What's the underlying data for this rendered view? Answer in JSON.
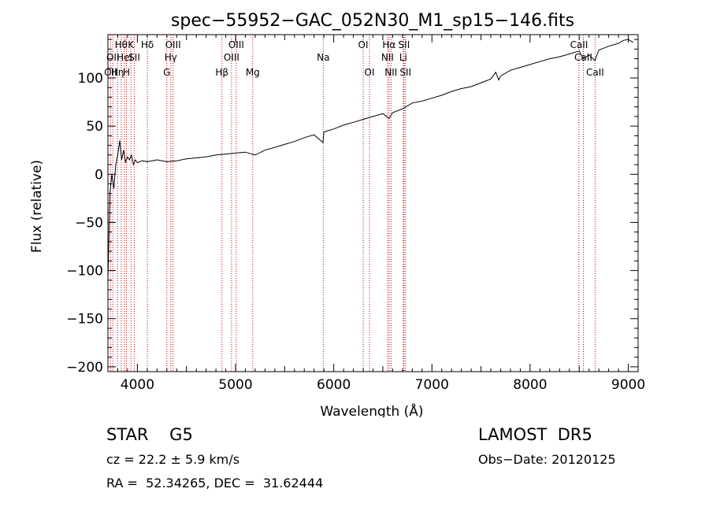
{
  "chart_data": {
    "type": "line",
    "title": "spec−55952−GAC_052N30_M1_sp15−146.fits",
    "xlabel": "Wavelength (Å)",
    "ylabel": "Flux (relative)",
    "xlim": [
      3700,
      9100
    ],
    "ylim": [
      -205,
      145
    ],
    "xticks": [
      4000,
      5000,
      6000,
      7000,
      8000,
      9000
    ],
    "yticks": [
      -200,
      -150,
      -100,
      -50,
      0,
      50,
      100
    ],
    "series": [
      {
        "color": "#000000",
        "x": [
          3700,
          3720,
          3740,
          3760,
          3780,
          3800,
          3820,
          3840,
          3860,
          3880,
          3900,
          3920,
          3940,
          3960,
          3980,
          4000,
          4050,
          4100,
          4150,
          4200,
          4300,
          4400,
          4500,
          4600,
          4700,
          4800,
          4900,
          5000,
          5100,
          5200,
          5300,
          5400,
          5500,
          5600,
          5700,
          5800,
          5890,
          5900,
          6000,
          6100,
          6200,
          6300,
          6400,
          6500,
          6563,
          6600,
          6700,
          6800,
          6900,
          7000,
          7100,
          7200,
          7300,
          7400,
          7500,
          7600,
          7650,
          7680,
          7700,
          7800,
          7900,
          8000,
          8100,
          8200,
          8300,
          8400,
          8500,
          8540,
          8600,
          8660,
          8700,
          8800,
          8900,
          8950,
          9000,
          9050
        ],
        "y": [
          -110,
          -20,
          0,
          -15,
          10,
          20,
          35,
          15,
          25,
          12,
          18,
          15,
          20,
          10,
          15,
          12,
          14,
          13,
          14,
          15,
          13,
          14,
          16,
          17,
          18,
          20,
          21,
          22,
          23,
          20,
          25,
          28,
          31,
          34,
          38,
          41,
          33,
          44,
          47,
          51,
          54,
          57,
          60,
          63,
          58,
          64,
          68,
          74,
          76,
          79,
          82,
          86,
          89,
          91,
          95,
          99,
          106,
          98,
          102,
          108,
          111,
          114,
          117,
          120,
          122,
          125,
          128,
          120,
          124,
          118,
          129,
          133,
          136,
          139,
          140,
          137
        ]
      }
    ],
    "lines": [
      {
        "x": 3727,
        "label": "OII",
        "row": 3
      },
      {
        "x": 3750,
        "label": "OII",
        "row": 2
      },
      {
        "x": 3798,
        "label": "Hη",
        "row": 3
      },
      {
        "x": 3835,
        "label": "Hθ",
        "row": 1
      },
      {
        "x": 3869,
        "label": "HeI",
        "row": 2
      },
      {
        "x": 3889,
        "label": "H",
        "row": 3
      },
      {
        "x": 3934,
        "label": "K",
        "row": 1
      },
      {
        "x": 3969,
        "label": "SII",
        "row": 2
      },
      {
        "x": 4102,
        "label": "Hδ",
        "row": 1
      },
      {
        "x": 4300,
        "label": "G",
        "row": 3
      },
      {
        "x": 4340,
        "label": "Hγ",
        "row": 2
      },
      {
        "x": 4363,
        "label": "OIII",
        "row": 1
      },
      {
        "x": 4861,
        "label": "Hβ",
        "row": 3
      },
      {
        "x": 4959,
        "label": "OIII",
        "row": 2
      },
      {
        "x": 5007,
        "label": "OIII",
        "row": 1
      },
      {
        "x": 5175,
        "label": "Mg",
        "row": 3
      },
      {
        "x": 5893,
        "label": "Na",
        "row": 2
      },
      {
        "x": 6300,
        "label": "OI",
        "row": 1
      },
      {
        "x": 6364,
        "label": "OI",
        "row": 3
      },
      {
        "x": 6548,
        "label": "NII",
        "row": 2
      },
      {
        "x": 6563,
        "label": "Hα",
        "row": 1
      },
      {
        "x": 6583,
        "label": "NII",
        "row": 3
      },
      {
        "x": 6708,
        "label": "Li",
        "row": 2
      },
      {
        "x": 6716,
        "label": "SII",
        "row": 1
      },
      {
        "x": 6731,
        "label": "SII",
        "row": 3
      },
      {
        "x": 8498,
        "label": "CaII",
        "row": 1
      },
      {
        "x": 8542,
        "label": "CaII",
        "row": 2
      },
      {
        "x": 8662,
        "label": "CaII",
        "row": 3
      }
    ]
  },
  "info": {
    "object": "STAR    G5",
    "survey": "LAMOST  DR5",
    "cz": "cz = 22.2 ± 5.9 km/s",
    "obsdate": "Obs−Date: 20120125",
    "radec": "RA =  52.34265, DEC =  31.62444"
  }
}
